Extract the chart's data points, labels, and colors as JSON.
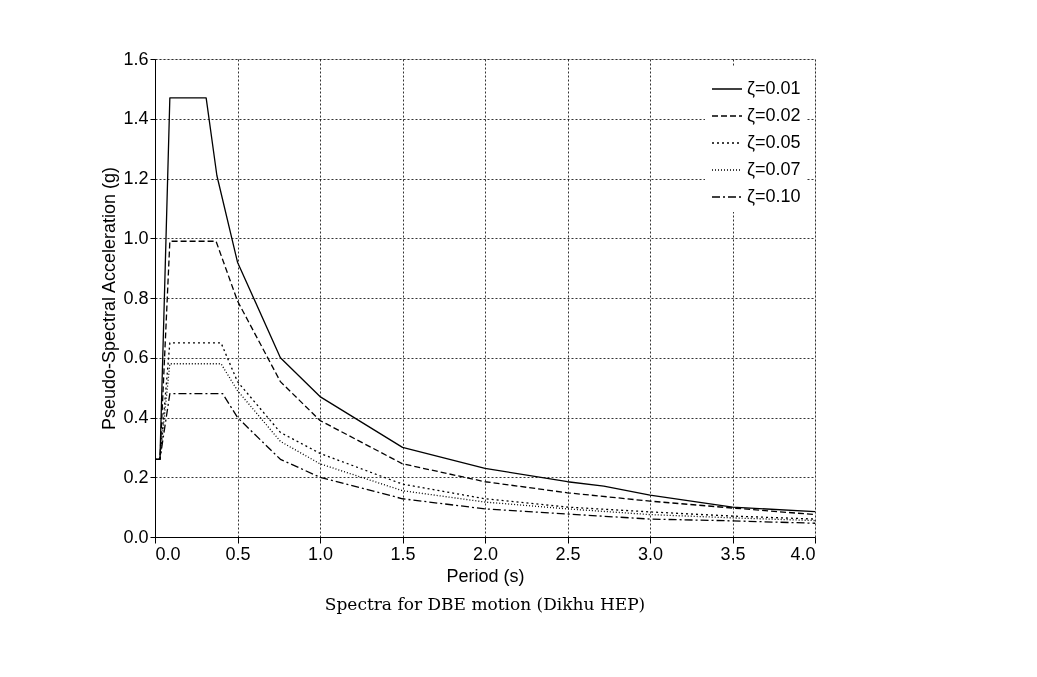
{
  "chart_data": {
    "type": "line",
    "xlabel": "Period (s)",
    "ylabel": "Pseudo-Spectral Acceleration (g)",
    "annotations": [
      "Spectra for DBE motion (Dikhu HEP)"
    ],
    "xlim": [
      0,
      4
    ],
    "xticks": [
      {
        "value": 0,
        "label": "0.0"
      },
      0.5,
      {
        "value": 1,
        "label": "1.0"
      },
      1.5,
      {
        "value": 2,
        "label": "2.0"
      },
      2.5,
      {
        "value": 3,
        "label": "3.0"
      },
      3.5,
      {
        "value": 4,
        "label": "4.0"
      }
    ],
    "ylim": [
      0,
      1.6
    ],
    "yticks": [
      {
        "value": 0,
        "label": "0.0"
      },
      0.2,
      0.4,
      0.6,
      0.8,
      {
        "value": 1,
        "label": "1.0"
      },
      1.2,
      1.4,
      1.6
    ],
    "grid": true,
    "legend": "top right",
    "marker": "none",
    "series": [
      {
        "name": "ζ=0.01",
        "color": "#000000",
        "line_style": "solid",
        "x": [
          0,
          0.03,
          0.09,
          0.31,
          0.375,
          0.5,
          0.76,
          1.0,
          1.5,
          2.0,
          2.5,
          2.72,
          3.0,
          3.5,
          4.0
        ],
        "values": [
          0.26,
          0.26,
          1.47,
          1.47,
          1.21,
          0.92,
          0.6,
          0.47,
          0.3,
          0.23,
          0.185,
          0.17,
          0.14,
          0.1,
          0.085
        ]
      },
      {
        "name": "ζ=0.02",
        "color": "#000000",
        "line_style": "dashed",
        "x": [
          0,
          0.03,
          0.09,
          0.37,
          0.5,
          0.76,
          1.0,
          1.5,
          2.0,
          2.5,
          3.0,
          3.5,
          4.0
        ],
        "values": [
          0.26,
          0.26,
          0.99,
          0.99,
          0.79,
          0.52,
          0.39,
          0.245,
          0.185,
          0.148,
          0.12,
          0.097,
          0.075
        ]
      },
      {
        "name": "ζ=0.05",
        "color": "#000000",
        "line_style": "dotted",
        "x": [
          0,
          0.03,
          0.09,
          0.4,
          0.5,
          0.76,
          1.0,
          1.5,
          2.0,
          2.5,
          3.0,
          3.5,
          4.0
        ],
        "values": [
          0.26,
          0.26,
          0.65,
          0.65,
          0.52,
          0.35,
          0.28,
          0.177,
          0.128,
          0.1,
          0.084,
          0.07,
          0.06
        ]
      },
      {
        "name": "ζ=0.07",
        "color": "#000000",
        "line_style": "dotted",
        "x": [
          0,
          0.03,
          0.09,
          0.4,
          0.5,
          0.76,
          1.0,
          1.5,
          2.0,
          2.5,
          3.0,
          3.5,
          4.0
        ],
        "values": [
          0.26,
          0.26,
          0.58,
          0.58,
          0.49,
          0.32,
          0.245,
          0.155,
          0.117,
          0.094,
          0.075,
          0.064,
          0.055
        ]
      },
      {
        "name": "ζ=0.10",
        "color": "#000000",
        "line_style": "dashdot",
        "x": [
          0,
          0.03,
          0.09,
          0.41,
          0.5,
          0.76,
          1.0,
          1.5,
          2.0,
          2.5,
          3.0,
          3.5,
          4.0
        ],
        "values": [
          0.26,
          0.26,
          0.48,
          0.48,
          0.4,
          0.26,
          0.2,
          0.128,
          0.094,
          0.077,
          0.06,
          0.054,
          0.046
        ]
      }
    ]
  }
}
